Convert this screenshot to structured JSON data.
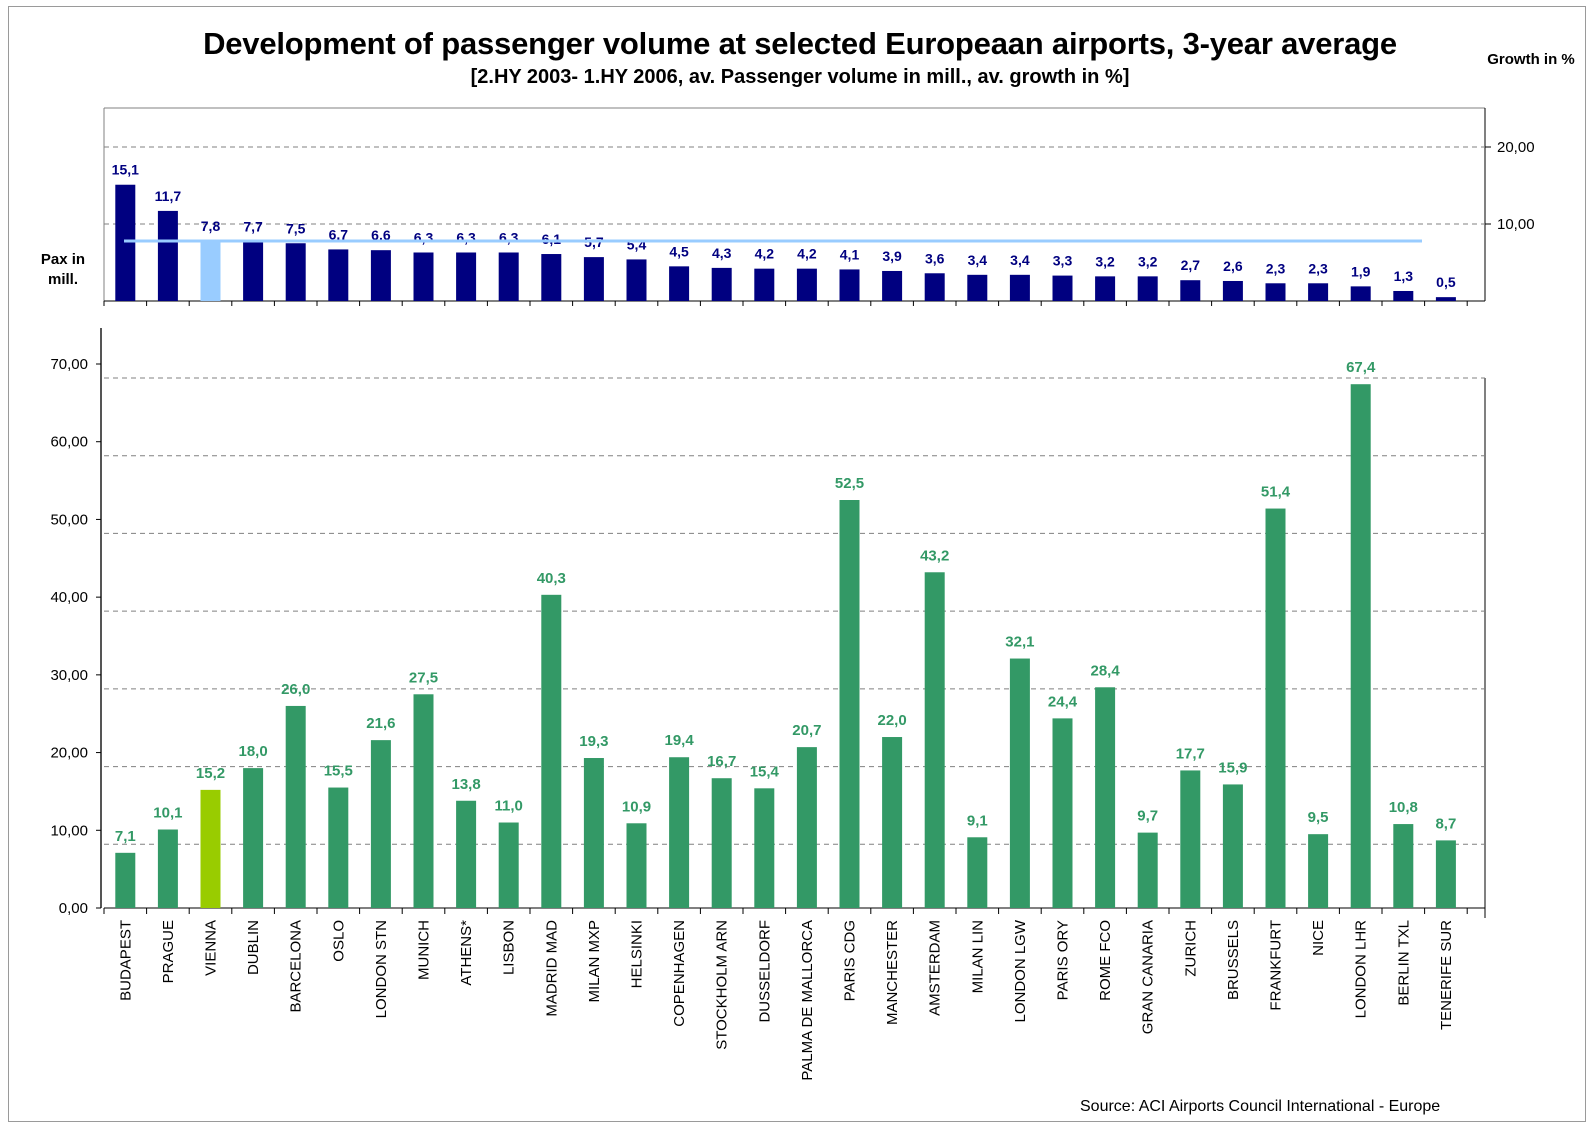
{
  "chart_data": [
    {
      "type": "bar",
      "title": "Development of passenger volume at selected Europeaan airports, 3-year average",
      "subtitle": "[2.HY 2003- 1.HY 2006, av. Passenger volume in mill., av. growth in %]",
      "ylabel": "Growth in %",
      "ylim": [
        0,
        20
      ],
      "yticks": [
        "10,00",
        "20,00"
      ],
      "categories": [
        "BUDAPEST",
        "PRAGUE",
        "VIENNA",
        "DUBLIN",
        "BARCELONA",
        "OSLO",
        "LONDON STN",
        "MUNICH",
        "ATHENS*",
        "LISBON",
        "MADRID MAD",
        "MILAN MXP",
        "HELSINKI",
        "COPENHAGEN",
        "STOCKHOLM ARN",
        "DUSSELDORF",
        "PALMA DE MALLORCA",
        "PARIS CDG",
        "MANCHESTER",
        "AMSTERDAM",
        "MILAN LIN",
        "LONDON LGW",
        "PARIS ORY",
        "ROME FCO",
        "GRAN CANARIA",
        "ZURICH",
        "BRUSSELS",
        "FRANKFURT",
        "NICE",
        "LONDON LHR",
        "BERLIN TXL",
        "TENERIFE SUR"
      ],
      "values": [
        15.1,
        11.7,
        7.8,
        7.7,
        7.5,
        6.7,
        6.6,
        6.3,
        6.3,
        6.3,
        6.1,
        5.7,
        5.4,
        4.5,
        4.3,
        4.2,
        4.2,
        4.1,
        3.9,
        3.6,
        3.4,
        3.4,
        3.3,
        3.2,
        3.2,
        2.7,
        2.6,
        2.3,
        2.3,
        1.9,
        1.3,
        0.5
      ],
      "labels": [
        "15,1",
        "11,7",
        "7,8",
        "7,7",
        "7,5",
        "6,7",
        "6,6",
        "6,3",
        "6,3",
        "6,3",
        "6,1",
        "5,7",
        "5,4",
        "4,5",
        "4,3",
        "4,2",
        "4,2",
        "4,1",
        "3,9",
        "3,6",
        "3,4",
        "3,4",
        "3,3",
        "3,2",
        "3,2",
        "2,7",
        "2,6",
        "2,3",
        "2,3",
        "1,9",
        "1,3",
        "0,5"
      ],
      "highlight_index": 2,
      "average_line": 7.8,
      "colors": {
        "bar": "#000080",
        "highlight": "#99ccff",
        "average_line": "#99ccff",
        "label": "#000080"
      }
    },
    {
      "type": "bar",
      "ylabel": "Pax in mill.",
      "ylim": [
        0,
        70
      ],
      "yticks": [
        "0,00",
        "10,00",
        "20,00",
        "30,00",
        "40,00",
        "50,00",
        "60,00",
        "70,00"
      ],
      "categories": [
        "BUDAPEST",
        "PRAGUE",
        "VIENNA",
        "DUBLIN",
        "BARCELONA",
        "OSLO",
        "LONDON STN",
        "MUNICH",
        "ATHENS*",
        "LISBON",
        "MADRID MAD",
        "MILAN MXP",
        "HELSINKI",
        "COPENHAGEN",
        "STOCKHOLM ARN",
        "DUSSELDORF",
        "PALMA DE MALLORCA",
        "PARIS CDG",
        "MANCHESTER",
        "AMSTERDAM",
        "MILAN LIN",
        "LONDON LGW",
        "PARIS ORY",
        "ROME FCO",
        "GRAN CANARIA",
        "ZURICH",
        "BRUSSELS",
        "FRANKFURT",
        "NICE",
        "LONDON LHR",
        "BERLIN TXL",
        "TENERIFE SUR"
      ],
      "values": [
        7.1,
        10.1,
        15.2,
        18.0,
        26.0,
        15.5,
        21.6,
        27.5,
        13.8,
        11.0,
        40.3,
        19.3,
        10.9,
        19.4,
        16.7,
        15.4,
        20.7,
        52.5,
        22.0,
        43.2,
        9.1,
        32.1,
        24.4,
        28.4,
        9.7,
        17.7,
        15.9,
        51.4,
        9.5,
        67.4,
        10.8,
        8.7
      ],
      "labels": [
        "7,1",
        "10,1",
        "15,2",
        "18,0",
        "26,0",
        "15,5",
        "21,6",
        "27,5",
        "13,8",
        "11,0",
        "40,3",
        "19,3",
        "10,9",
        "19,4",
        "16,7",
        "15,4",
        "20,7",
        "52,5",
        "22,0",
        "43,2",
        "9,1",
        "32,1",
        "24,4",
        "28,4",
        "9,7",
        "17,7",
        "15,9",
        "51,4",
        "9,5",
        "67,4",
        "10,8",
        "8,7"
      ],
      "highlight_index": 2,
      "colors": {
        "bar": "#339966",
        "highlight": "#99cc00",
        "label": "#339966"
      }
    }
  ],
  "labels": {
    "title": "Development of passenger volume at selected Europeaan airports, 3-year average",
    "subtitle": "[2.HY 2003- 1.HY 2006, av. Passenger volume in mill., av. growth in %]",
    "growth": "Growth in %",
    "pax": "Pax in mill.",
    "source": "Source: ACI Airports Council International - Europe"
  }
}
